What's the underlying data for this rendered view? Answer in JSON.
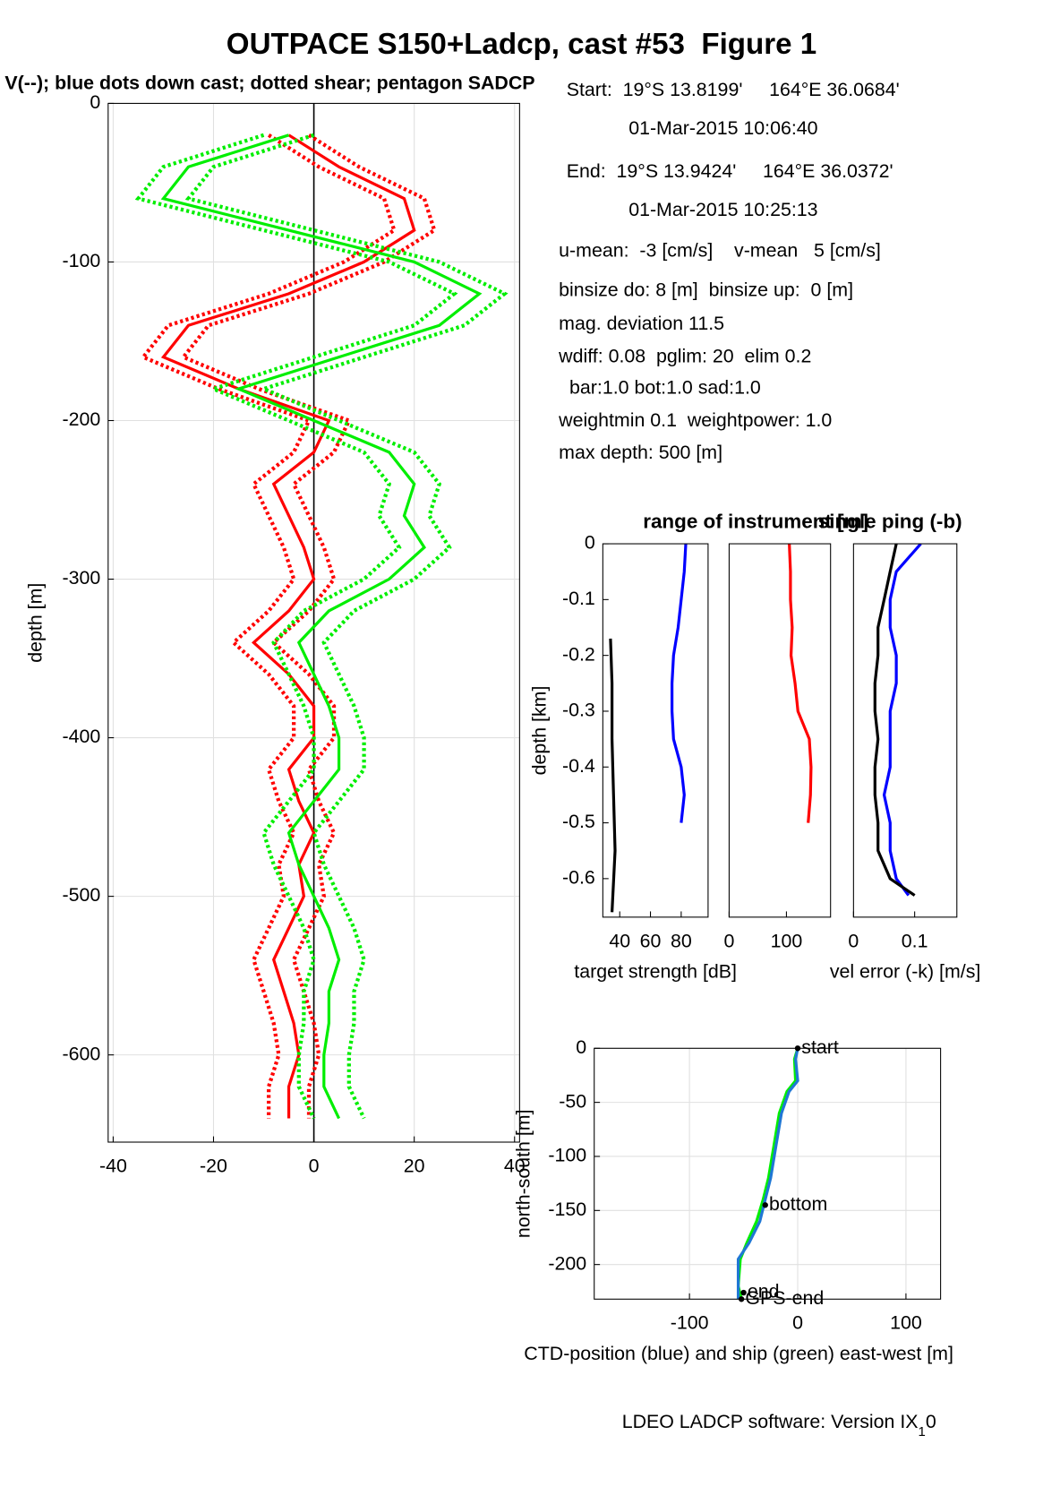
{
  "title": "OUTPACE S150+Ladcp, cast #53  Figure 1",
  "subtitle": "V(--); blue dots down cast; dotted shear; pentagon SADCP",
  "info": [
    "Start:  19°S 13.8199'     164°E 36.0684'",
    "01-Mar-2015 10:06:40",
    "End:  19°S 13.9424'     164°E 36.0372'",
    "01-Mar-2015 10:25:13",
    "u-mean:  -3 [cm/s]    v-mean   5 [cm/s]",
    "binsize do: 8 [m]  binsize up:  0 [m]",
    "mag. deviation 11.5",
    "wdiff: 0.08  pglim: 20  elim 0.2",
    "  bar:1.0 bot:1.0 sad:1.0",
    "weightmin 0.1  weightpower: 1.0",
    "max depth: 500 [m]"
  ],
  "footer": [
    "LDEO LADCP software: Version IX",
    "1",
    "0"
  ],
  "chart_data": [
    {
      "type": "line",
      "ylabel": "depth [m]",
      "xlim": [
        -41,
        41
      ],
      "ylim": [
        -655,
        0
      ],
      "xticks": [
        -40,
        -20,
        0,
        20,
        40
      ],
      "yticks": [
        -600,
        -500,
        -400,
        -300,
        -200,
        -100,
        0
      ],
      "grid": true,
      "zero_line": true,
      "series": [
        {
          "color": "#ff0000",
          "y": [
            -20,
            -40,
            -60,
            -80,
            -100,
            -120,
            -140,
            -160,
            -180,
            -200,
            -220,
            -240,
            -260,
            -280,
            -300,
            -320,
            -340,
            -360,
            -380,
            -400,
            -420,
            -440,
            -460,
            -480,
            -500,
            -520,
            -540,
            -560,
            -580,
            -600,
            -620,
            -640
          ],
          "values": [
            -5,
            5,
            18,
            20,
            10,
            -5,
            -25,
            -30,
            -15,
            3,
            0,
            -8,
            -5,
            -2,
            0,
            -5,
            -12,
            -5,
            0,
            0,
            -5,
            -3,
            0,
            -3,
            -2,
            -5,
            -8,
            -6,
            -4,
            -3,
            -5,
            -5
          ],
          "error": [
            4,
            4,
            4,
            4,
            4,
            4,
            4,
            4,
            4,
            4,
            4,
            4,
            4,
            4,
            4,
            4,
            4,
            4,
            4,
            4,
            4,
            4,
            4,
            4,
            4,
            4,
            4,
            4,
            4,
            4,
            4,
            4
          ]
        },
        {
          "color": "#00ee00",
          "y": [
            -20,
            -40,
            -60,
            -80,
            -100,
            -120,
            -140,
            -160,
            -180,
            -200,
            -220,
            -240,
            -260,
            -280,
            -300,
            -320,
            -340,
            -360,
            -380,
            -400,
            -420,
            -440,
            -460,
            -480,
            -500,
            -520,
            -540,
            -560,
            -580,
            -600,
            -620,
            -640
          ],
          "values": [
            -5,
            -25,
            -30,
            -5,
            20,
            33,
            25,
            5,
            -15,
            0,
            15,
            20,
            18,
            22,
            15,
            3,
            -3,
            0,
            3,
            5,
            5,
            0,
            -5,
            -3,
            0,
            3,
            5,
            3,
            3,
            2,
            2,
            5
          ],
          "error": [
            5,
            5,
            5,
            5,
            5,
            5,
            5,
            5,
            5,
            5,
            5,
            5,
            5,
            5,
            5,
            5,
            5,
            5,
            5,
            5,
            5,
            5,
            5,
            5,
            5,
            5,
            5,
            5,
            5,
            5,
            5,
            5
          ]
        }
      ]
    },
    {
      "type": "line",
      "ylabel": "depth [km]",
      "xlabel": "target strength [dB]",
      "xlabel_color": "#0000ff",
      "xlim": [
        29,
        97.5
      ],
      "ylim": [
        -0.669,
        0
      ],
      "xticks": [
        40,
        60,
        80
      ],
      "yticks": [
        -0.6,
        -0.5,
        -0.4,
        -0.3,
        -0.2,
        -0.1,
        0
      ],
      "series": [
        {
          "color": "#0000ff",
          "y": [
            0,
            -0.05,
            -0.1,
            -0.15,
            -0.2,
            -0.25,
            -0.3,
            -0.35,
            -0.4,
            -0.45,
            -0.5
          ],
          "values": [
            83,
            82,
            80,
            78,
            75,
            74,
            74,
            75,
            80,
            82,
            80
          ]
        },
        {
          "color": "#000000",
          "y": [
            -0.17,
            -0.25,
            -0.35,
            -0.45,
            -0.55,
            -0.66
          ],
          "values": [
            34,
            35,
            35,
            36,
            37,
            35
          ]
        }
      ]
    },
    {
      "type": "line",
      "title": "range of instrument [m]",
      "title_color": "#ff0000",
      "xlim": [
        0,
        177
      ],
      "ylim": [
        -0.669,
        0
      ],
      "xticks": [
        0,
        100
      ],
      "series": [
        {
          "color": "#ff0000",
          "y": [
            0,
            -0.05,
            -0.1,
            -0.15,
            -0.2,
            -0.25,
            -0.3,
            -0.35,
            -0.4,
            -0.45,
            -0.5
          ],
          "values": [
            105,
            107,
            107,
            110,
            108,
            115,
            120,
            140,
            143,
            142,
            138
          ]
        }
      ]
    },
    {
      "type": "line",
      "title": "single ping (-b)",
      "title_color": "#0000ff",
      "xlabel": "vel error (-k) [m/s]",
      "xlabel_color": "#000000",
      "xlim": [
        0,
        0.169
      ],
      "ylim": [
        -0.669,
        0
      ],
      "xticks": [
        0,
        0.1
      ],
      "series": [
        {
          "color": "#0000ff",
          "y": [
            0,
            -0.05,
            -0.1,
            -0.15,
            -0.2,
            -0.25,
            -0.3,
            -0.35,
            -0.4,
            -0.45,
            -0.5,
            -0.55,
            -0.6,
            -0.63
          ],
          "values": [
            0.11,
            0.07,
            0.06,
            0.06,
            0.07,
            0.07,
            0.06,
            0.06,
            0.06,
            0.05,
            0.06,
            0.06,
            0.07,
            0.09
          ]
        },
        {
          "color": "#000000",
          "y": [
            0,
            -0.05,
            -0.1,
            -0.15,
            -0.2,
            -0.25,
            -0.3,
            -0.35,
            -0.4,
            -0.45,
            -0.5,
            -0.55,
            -0.6,
            -0.63
          ],
          "values": [
            0.07,
            0.06,
            0.05,
            0.04,
            0.04,
            0.035,
            0.035,
            0.04,
            0.035,
            0.035,
            0.04,
            0.04,
            0.06,
            0.1
          ]
        }
      ]
    },
    {
      "type": "line",
      "ylabel": "north-south [m]",
      "xlabel": "CTD-position (blue) and ship (green) east-west [m]",
      "xlabel_color": "#000000",
      "xlim": [
        -188,
        132
      ],
      "ylim": [
        -232,
        0
      ],
      "xticks": [
        -100,
        0,
        100
      ],
      "yticks": [
        -200,
        -150,
        -100,
        -50,
        0
      ],
      "grid": true,
      "series": [
        {
          "color": "#00ee00",
          "x": [
            0,
            -3,
            -2,
            -10,
            -17,
            -22,
            -27,
            -32,
            -38,
            -47,
            -53,
            -55,
            -52
          ],
          "values": [
            0,
            -10,
            -30,
            -40,
            -60,
            -90,
            -120,
            -140,
            -160,
            -180,
            -195,
            -220,
            -232
          ]
        },
        {
          "color": "#1f77d4",
          "x": [
            0,
            -2,
            0,
            -8,
            -15,
            -20,
            -25,
            -30,
            -35,
            -45,
            -55,
            -55,
            -55
          ],
          "values": [
            0,
            -10,
            -30,
            -40,
            -60,
            -90,
            -120,
            -140,
            -160,
            -180,
            -195,
            -220,
            -232
          ]
        }
      ],
      "annotations": [
        {
          "text": "start",
          "x": 0,
          "y": 0
        },
        {
          "text": "bottom",
          "x": -30,
          "y": -145
        },
        {
          "text": "end",
          "x": -50,
          "y": -226
        },
        {
          "text": "GPS-end",
          "x": -52,
          "y": -232
        }
      ]
    }
  ]
}
